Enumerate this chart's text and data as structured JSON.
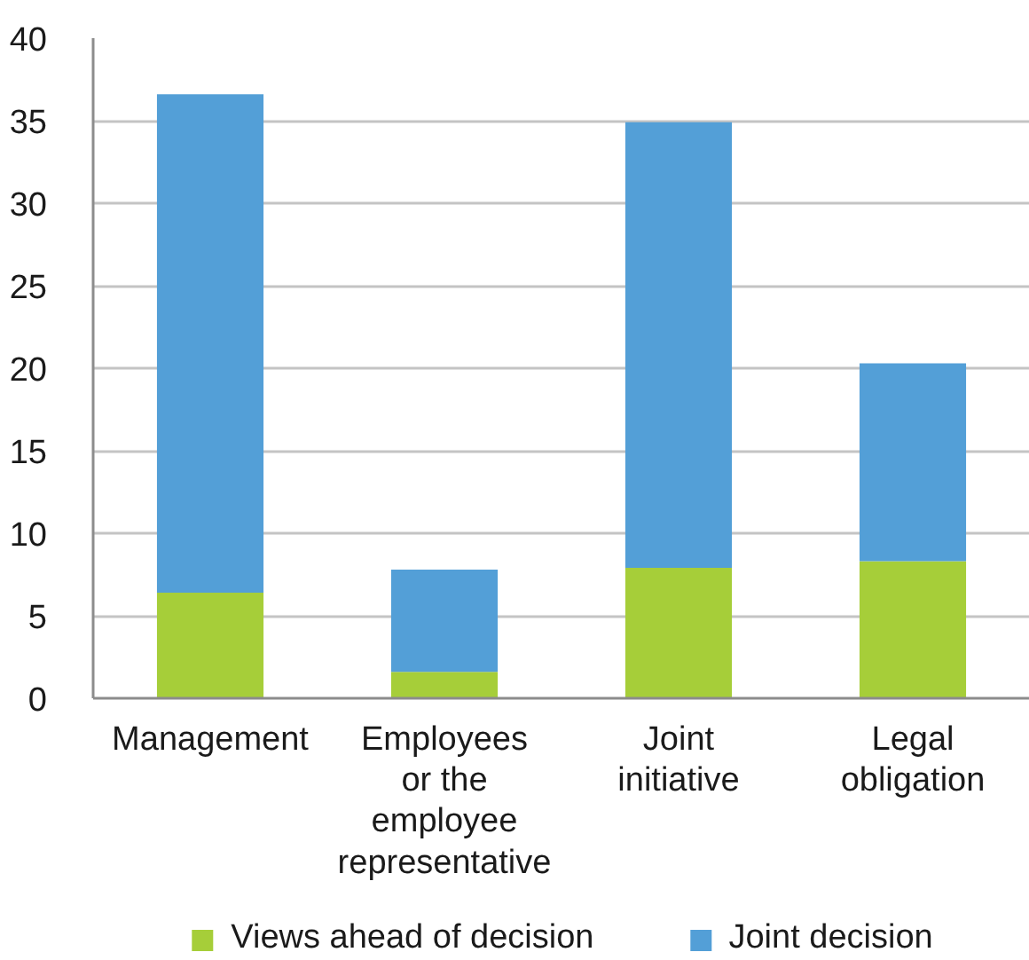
{
  "chart_data": {
    "type": "bar",
    "stacked": true,
    "categories": [
      "Management",
      "Employees or the employee representative",
      "Joint initiative",
      "Legal obligation"
    ],
    "series": [
      {
        "name": "Views ahead of decision",
        "color": "#a6ce39",
        "values": [
          6.4,
          1.6,
          7.9,
          8.3
        ]
      },
      {
        "name": "Joint decision",
        "color": "#539fd7",
        "values": [
          30.2,
          6.2,
          27.0,
          12.0
        ]
      }
    ],
    "ylim": [
      0,
      40
    ],
    "yticks": [
      0,
      5,
      10,
      15,
      20,
      25,
      30,
      35,
      40
    ],
    "grid": "y",
    "legend": "bottom"
  }
}
